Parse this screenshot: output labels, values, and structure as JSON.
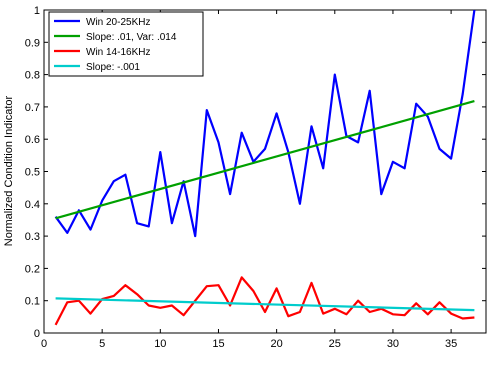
{
  "chart_data": {
    "type": "line",
    "title": "",
    "xlabel": "",
    "ylabel": "Normalized Condition Indicator",
    "xlim": [
      0,
      38
    ],
    "ylim": [
      0,
      1
    ],
    "xticks": [
      0,
      5,
      10,
      15,
      20,
      25,
      30,
      35
    ],
    "yticks": [
      0,
      0.1,
      0.2,
      0.3,
      0.4,
      0.5,
      0.6,
      0.7,
      0.8,
      0.9,
      1
    ],
    "ytick_labels": [
      "0",
      "0.1",
      "0.2",
      "0.3",
      "0.4",
      "0.5",
      "0.6",
      "0.7",
      "0.8",
      "0.9",
      "1"
    ],
    "grid": false,
    "legend_position": "top-left",
    "series": [
      {
        "name": "Win 20-25KHz",
        "color": "#0000ff",
        "x": [
          1,
          2,
          3,
          4,
          5,
          6,
          7,
          8,
          9,
          10,
          11,
          12,
          13,
          14,
          15,
          16,
          17,
          18,
          19,
          20,
          21,
          22,
          23,
          24,
          25,
          26,
          27,
          28,
          29,
          30,
          31,
          32,
          33,
          34,
          35,
          36,
          37
        ],
        "y": [
          0.36,
          0.31,
          0.38,
          0.32,
          0.41,
          0.47,
          0.49,
          0.34,
          0.33,
          0.56,
          0.34,
          0.47,
          0.3,
          0.69,
          0.59,
          0.43,
          0.62,
          0.53,
          0.57,
          0.68,
          0.56,
          0.4,
          0.64,
          0.51,
          0.8,
          0.61,
          0.59,
          0.75,
          0.43,
          0.53,
          0.51,
          0.71,
          0.67,
          0.57,
          0.54,
          0.74,
          1.0
        ]
      },
      {
        "name": "Slope: .01, Var: .014",
        "color": "#00a000",
        "x": [
          1,
          37
        ],
        "y": [
          0.355,
          0.718
        ]
      },
      {
        "name": "Win 14-16KHz",
        "color": "#ff0000",
        "x": [
          1,
          2,
          3,
          4,
          5,
          6,
          7,
          8,
          9,
          10,
          11,
          12,
          13,
          14,
          15,
          16,
          17,
          18,
          19,
          20,
          21,
          22,
          23,
          24,
          25,
          26,
          27,
          28,
          29,
          30,
          31,
          32,
          33,
          34,
          35,
          36,
          37
        ],
        "y": [
          0.025,
          0.095,
          0.1,
          0.06,
          0.105,
          0.115,
          0.148,
          0.12,
          0.085,
          0.078,
          0.085,
          0.055,
          0.1,
          0.145,
          0.148,
          0.085,
          0.172,
          0.13,
          0.065,
          0.138,
          0.052,
          0.065,
          0.155,
          0.06,
          0.075,
          0.058,
          0.1,
          0.065,
          0.075,
          0.058,
          0.055,
          0.092,
          0.058,
          0.095,
          0.06,
          0.045,
          0.048
        ]
      },
      {
        "name": "Slope: -.001",
        "color": "#00cccc",
        "x": [
          1,
          37
        ],
        "y": [
          0.107,
          0.071
        ]
      }
    ]
  }
}
